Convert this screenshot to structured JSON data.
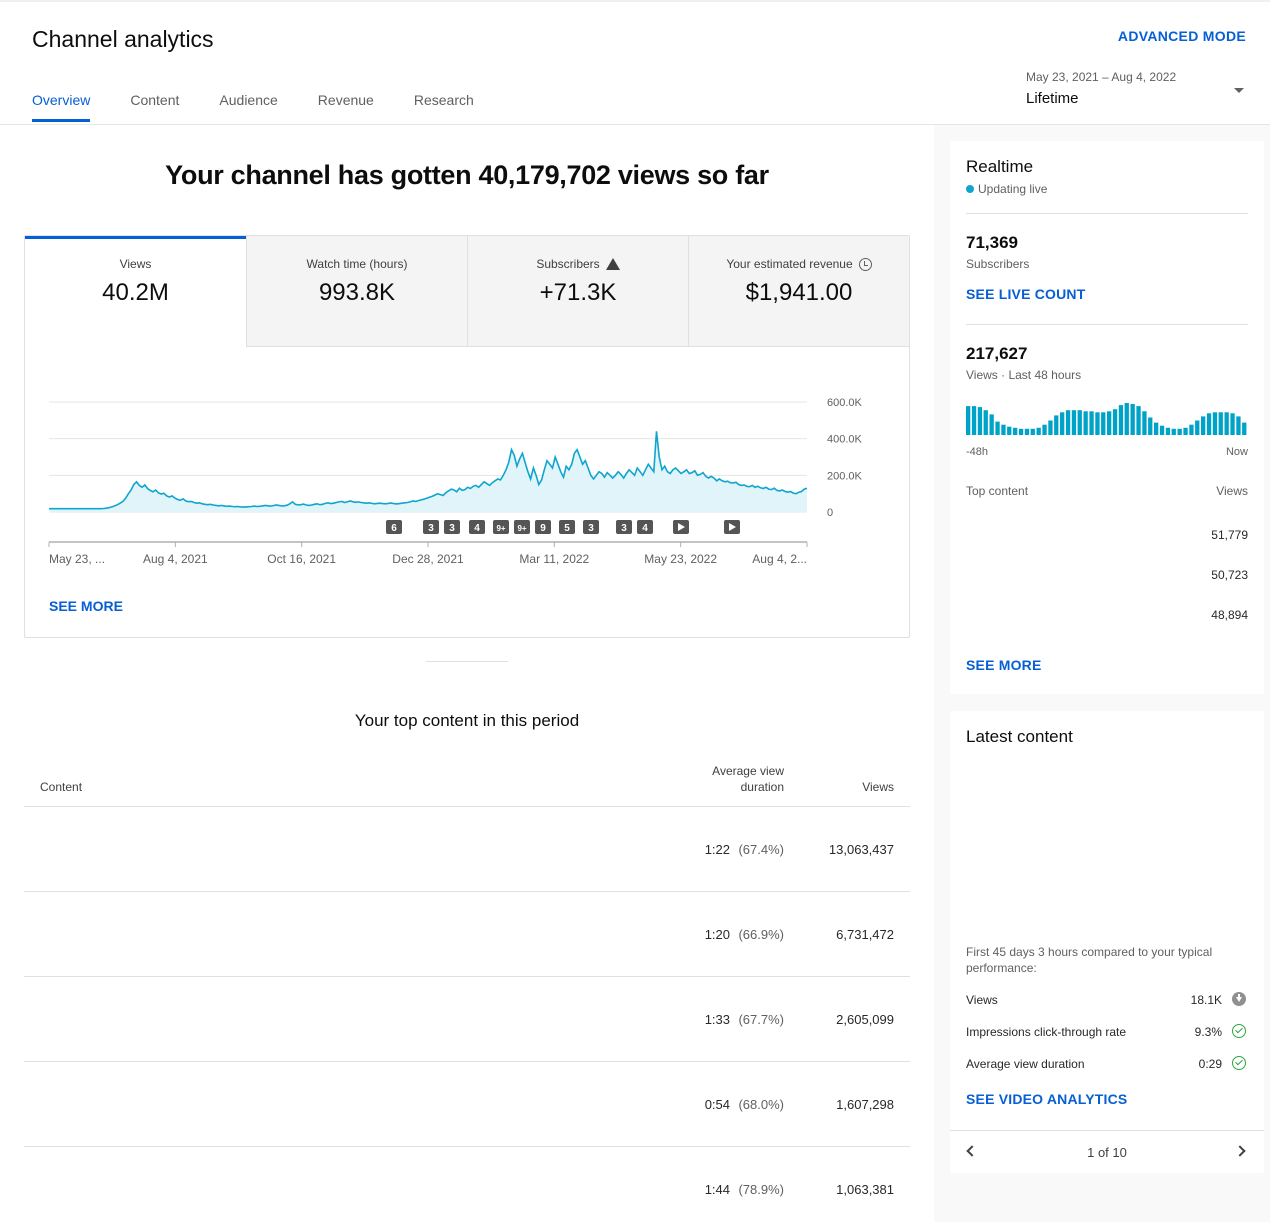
{
  "header": {
    "title": "Channel analytics",
    "advanced_mode": "ADVANCED MODE",
    "tabs": [
      "Overview",
      "Content",
      "Audience",
      "Revenue",
      "Research"
    ],
    "date_range": "May 23, 2021 – Aug 4, 2022",
    "date_preset": "Lifetime"
  },
  "headline": "Your channel has gotten 40,179,702 views so far",
  "metrics": [
    {
      "label": "Views",
      "value": "40.2M"
    },
    {
      "label": "Watch time (hours)",
      "value": "993.8K"
    },
    {
      "label": "Subscribers",
      "value": "+71.3K"
    },
    {
      "label": "Your estimated revenue",
      "value": "$1,941.00"
    }
  ],
  "see_more": "SEE MORE",
  "chart_data": {
    "type": "area",
    "series": [
      {
        "values": [
          18000,
          18000,
          18000,
          18000,
          18000,
          18000,
          18000,
          18000,
          18000,
          18000,
          18000,
          18000,
          18000,
          18000,
          18000,
          18000,
          18000,
          18000,
          18000,
          18000,
          19000,
          21000,
          24000,
          28000,
          33000,
          40000,
          48000,
          58000,
          75000,
          100000,
          120000,
          150000,
          165000,
          145000,
          135000,
          148000,
          128000,
          118000,
          110000,
          120000,
          105000,
          98000,
          102000,
          88000,
          82000,
          88000,
          76000,
          68000,
          64000,
          72000,
          60000,
          56000,
          58000,
          52000,
          48000,
          50000,
          45000,
          42000,
          40000,
          42000,
          38000,
          36000,
          34000,
          36000,
          33000,
          31000,
          32000,
          30000,
          29000,
          30000,
          28000,
          27000,
          28000,
          29000,
          30000,
          32000,
          30000,
          31000,
          33000,
          36000,
          34000,
          32000,
          35000,
          38000,
          36000,
          33000,
          34000,
          37000,
          45000,
          55000,
          42000,
          38000,
          40000,
          43000,
          38000,
          36000,
          38000,
          42000,
          45000,
          40000,
          42000,
          47000,
          50000,
          46000,
          48000,
          52000,
          55000,
          58000,
          52000,
          55000,
          60000,
          56000,
          53000,
          55000,
          52000,
          50000,
          48000,
          50000,
          47000,
          45000,
          47000,
          48000,
          46000,
          45000,
          47000,
          49000,
          46000,
          44000,
          46000,
          48000,
          50000,
          52000,
          55000,
          60000,
          58000,
          62000,
          66000,
          70000,
          75000,
          80000,
          85000,
          92000,
          100000,
          95000,
          90000,
          105000,
          115000,
          125000,
          120000,
          110000,
          130000,
          118000,
          122000,
          135000,
          128000,
          140000,
          145000,
          135000,
          150000,
          165000,
          155000,
          145000,
          160000,
          170000,
          180000,
          175000,
          200000,
          230000,
          270000,
          340000,
          310000,
          250000,
          290000,
          320000,
          270000,
          220000,
          180000,
          240000,
          200000,
          150000,
          175000,
          230000,
          280000,
          260000,
          240000,
          300000,
          260000,
          220000,
          190000,
          250000,
          230000,
          260000,
          320000,
          340000,
          300000,
          260000,
          280000,
          240000,
          200000,
          180000,
          200000,
          220000,
          210000,
          190000,
          215000,
          200000,
          185000,
          200000,
          220000,
          205000,
          185000,
          210000,
          230000,
          215000,
          200000,
          240000,
          220000,
          200000,
          230000,
          260000,
          240000,
          220000,
          440000,
          300000,
          230000,
          250000,
          220000,
          210000,
          230000,
          240000,
          225000,
          210000,
          220000,
          230000,
          210000,
          215000,
          225000,
          200000,
          205000,
          215000,
          195000,
          185000,
          195000,
          185000,
          170000,
          180000,
          170000,
          165000,
          168000,
          160000,
          158000,
          162000,
          150000,
          145000,
          148000,
          140000,
          138000,
          145000,
          135000,
          140000,
          132000,
          128000,
          135000,
          125000,
          122000,
          130000,
          118000,
          115000,
          120000,
          112000,
          108000,
          112000,
          103000,
          100000,
          108000,
          112000,
          125000,
          130000
        ]
      }
    ],
    "x_tick_labels": [
      "May 23, ...",
      "Aug 4, 2021",
      "Oct 16, 2021",
      "Dec 28, 2021",
      "Mar 11, 2022",
      "May 23, 2022",
      "Aug 4, 2..."
    ],
    "y_tick_labels": [
      "600.0K",
      "400.0K",
      "200.0K",
      "0"
    ],
    "ylim": [
      0,
      600000
    ],
    "markers": [
      "6",
      "3",
      "3",
      "4",
      "9+",
      "9+",
      "9",
      "5",
      "3",
      "3",
      "4",
      "play",
      "play"
    ],
    "grid": true
  },
  "top_content": {
    "title": "Your top content in this period",
    "col_content": "Content",
    "col_avd": [
      "Average view",
      "duration"
    ],
    "col_views": "Views",
    "rows": [
      {
        "duration": "1:22",
        "pct": "(67.4%)",
        "views": "13,063,437"
      },
      {
        "duration": "1:20",
        "pct": "(66.9%)",
        "views": "6,731,472"
      },
      {
        "duration": "1:33",
        "pct": "(67.7%)",
        "views": "2,605,099"
      },
      {
        "duration": "0:54",
        "pct": "(68.0%)",
        "views": "1,607,298"
      },
      {
        "duration": "1:44",
        "pct": "(78.9%)",
        "views": "1,063,381"
      }
    ]
  },
  "realtime": {
    "title": "Realtime",
    "status": "Updating live",
    "subs_count": "71,369",
    "subs_label": "Subscribers",
    "see_live": "SEE LIVE COUNT",
    "views_count": "217,627",
    "views_label": "Views · Last 48 hours",
    "bars": [
      28,
      28,
      27,
      24,
      20,
      13,
      10,
      8,
      7,
      6,
      6,
      6,
      7,
      10,
      14,
      19,
      22,
      24,
      24,
      24,
      23,
      23,
      22,
      22,
      23,
      25,
      29,
      31,
      30,
      28,
      23,
      17,
      12,
      9,
      7,
      6,
      6,
      7,
      10,
      14,
      18,
      21,
      22,
      22,
      22,
      21,
      18,
      12
    ],
    "axis_left": "-48h",
    "axis_right": "Now",
    "top_label": "Top content",
    "top_views_label": "Views",
    "top_values": [
      "51,779",
      "50,723",
      "48,894"
    ],
    "see_more": "SEE MORE",
    "accent": "#00a3c8"
  },
  "latest": {
    "title": "Latest content",
    "desc": "First 45 days 3 hours compared to your typical performance:",
    "rows": [
      {
        "label": "Views",
        "value": "18.1K",
        "icon": "down-arrow-icon"
      },
      {
        "label": "Impressions click-through rate",
        "value": "9.3%",
        "icon": "check-icon"
      },
      {
        "label": "Average view duration",
        "value": "0:29",
        "icon": "check-icon"
      }
    ],
    "link": "SEE VIDEO ANALYTICS",
    "pager": "1 of 10"
  }
}
